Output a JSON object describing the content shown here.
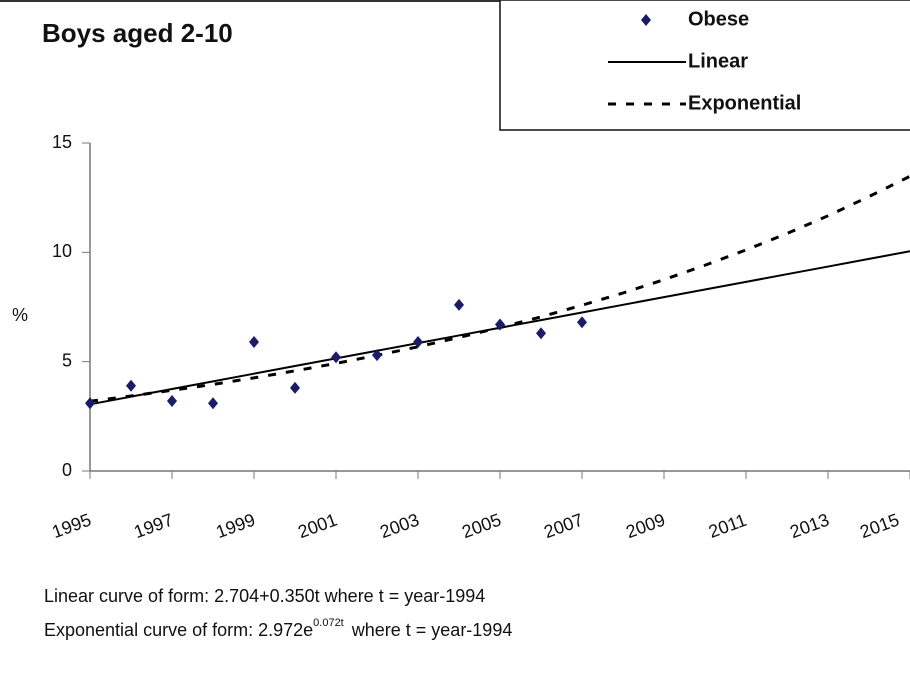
{
  "chart_data": {
    "type": "scatter",
    "title": "Boys aged 2-10",
    "y_label": "%",
    "xlim": [
      1995,
      2015
    ],
    "ylim": [
      0,
      15
    ],
    "xticks": [
      1995,
      1997,
      1999,
      2001,
      2003,
      2005,
      2007,
      2009,
      2011,
      2013,
      2015
    ],
    "yticks": [
      0,
      5,
      10,
      15
    ],
    "grid": false,
    "legend": "top-right",
    "series": [
      {
        "name": "Obese",
        "type": "scatter",
        "color": "#1a1a6e",
        "x": [
          1995,
          1996,
          1997,
          1998,
          1999,
          2000,
          2001,
          2002,
          2003,
          2004,
          2005,
          2006,
          2007
        ],
        "values": [
          3.1,
          3.9,
          3.2,
          3.1,
          5.9,
          3.8,
          5.2,
          5.3,
          5.9,
          7.6,
          6.7,
          6.3,
          6.8
        ]
      },
      {
        "name": "Linear",
        "type": "line",
        "color": "#000000",
        "dash": false,
        "x": [
          1995,
          1996,
          1997,
          1998,
          1999,
          2000,
          2001,
          2002,
          2003,
          2004,
          2005,
          2006,
          2007,
          2008,
          2009,
          2010,
          2011,
          2012,
          2013,
          2014,
          2015
        ],
        "values": [
          3.05,
          3.4,
          3.75,
          4.1,
          4.45,
          4.8,
          5.15,
          5.5,
          5.85,
          6.2,
          6.55,
          6.9,
          7.25,
          7.6,
          7.95,
          8.3,
          8.65,
          9.0,
          9.35,
          9.7,
          10.05
        ]
      },
      {
        "name": "Exponential",
        "type": "line",
        "color": "#000000",
        "dash": true,
        "x": [
          1995,
          1996,
          1997,
          1998,
          1999,
          2000,
          2001,
          2002,
          2003,
          2004,
          2005,
          2006,
          2007,
          2008,
          2009,
          2010,
          2011,
          2012,
          2013,
          2014,
          2015
        ],
        "values": [
          3.19,
          3.43,
          3.69,
          3.96,
          4.26,
          4.58,
          4.92,
          5.29,
          5.68,
          6.11,
          6.56,
          7.05,
          7.58,
          8.14,
          8.75,
          9.41,
          10.11,
          10.86,
          11.67,
          12.55,
          13.48
        ]
      }
    ],
    "notes": [
      {
        "text": "Linear curve of form: 2.704+0.350t where t = year-1994"
      },
      {
        "text": "Exponential curve of form: 2.972e",
        "superscript": "0.072t",
        "text_after": "where t = year-1994"
      }
    ]
  }
}
